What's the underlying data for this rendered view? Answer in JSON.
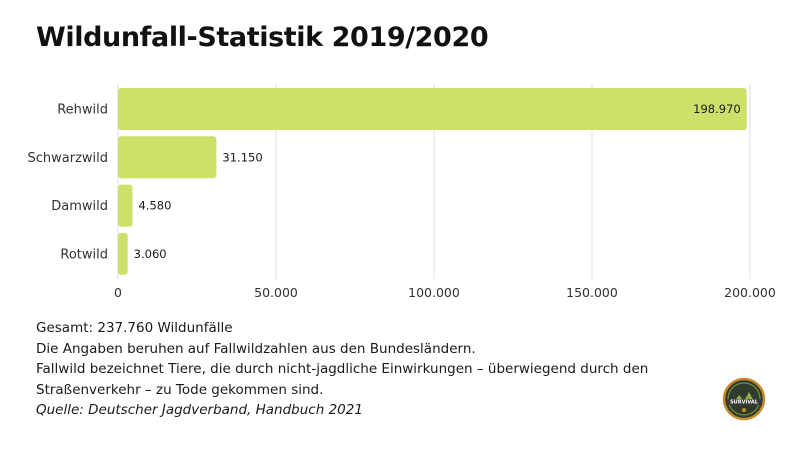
{
  "page": {
    "title": "Wildunfall-Statistik 2019/2020"
  },
  "chart_data": {
    "type": "bar",
    "orientation": "horizontal",
    "title": "Wildunfall-Statistik 2019/2020",
    "xlabel": "",
    "ylabel": "",
    "categories": [
      "Rehwild",
      "Schwarzwild",
      "Damwild",
      "Rotwild"
    ],
    "values": [
      198970,
      31150,
      4580,
      3060
    ],
    "value_labels": [
      "198.970",
      "31.150",
      "4.580",
      "3.060"
    ],
    "xlim": [
      0,
      200000
    ],
    "x_ticks": [
      0,
      50000,
      100000,
      150000,
      200000
    ],
    "x_tick_labels": [
      "0",
      "50.000",
      "100.000",
      "150.000",
      "200.000"
    ],
    "grid": "vertical",
    "legend": "none",
    "bar_color": "#cfe06a",
    "grid_color": "#dddddd"
  },
  "notes": {
    "total": "Gesamt: 237.760 Wildunfälle",
    "line1": "Die Angaben beruhen auf Fallwildzahlen aus den Bundesländern.",
    "line2": "Fallwild bezeichnet Tiere, die durch nicht-jagdliche Einwirkungen – überwiegend durch den",
    "line3": "Straßenverkehr – zu Tode gekommen sind.",
    "source": "Quelle: Deutscher Jagdverband, Handbuch 2021"
  },
  "logo": {
    "text": "SURVIVAL",
    "icon": "survival-badge-icon"
  }
}
